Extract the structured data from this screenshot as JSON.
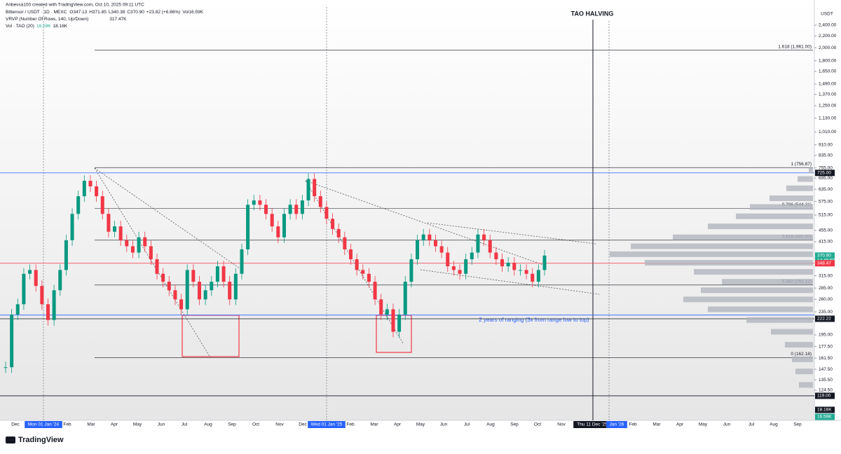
{
  "header": {
    "credit": "Anbessa100 created with TradingView.com, Oct 10, 2025 09:11 UTC",
    "symbol": "Bittensor / USDT · 1D · MEXC",
    "open": "O347.13",
    "high": "H371.85",
    "low": "L340.38",
    "close": "C370.90",
    "change": "+23.82 (+6.86%)",
    "volume": "Vol16.59K",
    "vrvp": "VRVP (Number Of Rows, 140, Up/Down)",
    "vrvp_value": "317.47K",
    "vol_indicator": "Vol · TAO (20)",
    "vol_a": "16.59K",
    "vol_b": "18.16K"
  },
  "currency": "USDT",
  "halving_label": "TAO HALVING",
  "annotation": "2 years of ranging (3x from range low to top)",
  "footer": "TradingView",
  "price_ticks": [
    {
      "value": 2400,
      "label": "2,400.00"
    },
    {
      "value": 2200,
      "label": "2,200.00"
    },
    {
      "value": 2000,
      "label": "2,000.00"
    },
    {
      "value": 1800,
      "label": "1,800.00"
    },
    {
      "value": 1650,
      "label": "1,650.00"
    },
    {
      "value": 1490,
      "label": "1,490.00"
    },
    {
      "value": 1370,
      "label": "1,370.00"
    },
    {
      "value": 1250,
      "label": "1,250.00"
    },
    {
      "value": 1130,
      "label": "1,130.00"
    },
    {
      "value": 1010,
      "label": "1,010.00"
    },
    {
      "value": 910,
      "label": "910.00"
    },
    {
      "value": 835,
      "label": "835.00"
    },
    {
      "value": 755,
      "label": "755.00"
    },
    {
      "value": 695,
      "label": "695.00"
    },
    {
      "value": 635,
      "label": "635.00"
    },
    {
      "value": 575,
      "label": "575.00"
    },
    {
      "value": 515,
      "label": "515.00"
    },
    {
      "value": 455,
      "label": "455.00"
    },
    {
      "value": 415,
      "label": "415.00"
    },
    {
      "value": 315,
      "label": "315.00"
    },
    {
      "value": 285,
      "label": "285.00"
    },
    {
      "value": 260,
      "label": "260.00"
    },
    {
      "value": 235,
      "label": "235.00"
    },
    {
      "value": 195,
      "label": "195.00"
    },
    {
      "value": 177.5,
      "label": "177.50"
    },
    {
      "value": 161.5,
      "label": "161.50"
    },
    {
      "value": 147.5,
      "label": "147.50"
    },
    {
      "value": 135.5,
      "label": "135.50"
    },
    {
      "value": 124.5,
      "label": "124.50"
    }
  ],
  "price_badges": [
    {
      "value": 725,
      "label": "725.00",
      "color": "#131722"
    },
    {
      "value": 370.9,
      "label": "370.90",
      "color": "#22ab94",
      "sub": "14:48:59"
    },
    {
      "value": 348.47,
      "label": "348.47",
      "color": "#f23645"
    },
    {
      "value": 222.22,
      "label": "222.22",
      "color": "#131722"
    },
    {
      "value": 119,
      "label": "119.00",
      "color": "#131722"
    }
  ],
  "volume_badges": [
    {
      "label": "18.16K",
      "color": "#131722"
    },
    {
      "label": "16.59K",
      "color": "#22ab94"
    }
  ],
  "fib_levels": [
    {
      "label": "1.618 (1,961.00)",
      "value": 1961
    },
    {
      "label": "1 (756.87)",
      "value": 756.87
    },
    {
      "label": "0.786 (544.31)",
      "value": 544.31
    },
    {
      "label": "0.618 (420.20)",
      "value": 420.2
    },
    {
      "label": "0.382 (292.12)",
      "value": 292.12
    },
    {
      "label": "0 (162.18)",
      "value": 162.18
    }
  ],
  "time_labels": [
    {
      "label": "Dec"
    },
    {
      "label": "Mon 01 Jan '24",
      "highlight": "#2962ff"
    },
    {
      "label": "Feb"
    },
    {
      "label": "Mar"
    },
    {
      "label": "Apr"
    },
    {
      "label": "May"
    },
    {
      "label": "Jun"
    },
    {
      "label": "Jul"
    },
    {
      "label": "Aug"
    },
    {
      "label": "Sep"
    },
    {
      "label": "Oct"
    },
    {
      "label": "Nov"
    },
    {
      "label": "Dec"
    },
    {
      "label": "Wed 01 Jan '25",
      "highlight": "#2962ff"
    },
    {
      "label": "Feb"
    },
    {
      "label": "Mar"
    },
    {
      "label": "Apr"
    },
    {
      "label": "May"
    },
    {
      "label": "Jun"
    },
    {
      "label": "Jul"
    },
    {
      "label": "Aug"
    },
    {
      "label": "Sep"
    },
    {
      "label": "Oct"
    },
    {
      "label": "Nov"
    },
    {
      "label": "Thu 11 Dec '25",
      "highlight": "#131722"
    },
    {
      "label": "Jan '26",
      "highlight": "#2962ff"
    },
    {
      "label": "Feb"
    },
    {
      "label": "Mar"
    },
    {
      "label": "Apr"
    },
    {
      "label": "May"
    },
    {
      "label": "Jun"
    },
    {
      "label": "Jul"
    },
    {
      "label": "Aug"
    },
    {
      "label": "Sep"
    }
  ],
  "closes": [
    150,
    230,
    250,
    320,
    330,
    290,
    250,
    220,
    280,
    330,
    420,
    520,
    600,
    680,
    650,
    600,
    520,
    450,
    470,
    420,
    400,
    380,
    430,
    400,
    360,
    320,
    300,
    280,
    260,
    240,
    330,
    300,
    260,
    280,
    300,
    340,
    300,
    260,
    320,
    390,
    560,
    580,
    560,
    520,
    470,
    430,
    520,
    560,
    520,
    580,
    690,
    600,
    550,
    500,
    460,
    430,
    390,
    360,
    330,
    320,
    300,
    260,
    230,
    240,
    200,
    230,
    300,
    360,
    420,
    440,
    420,
    400,
    380,
    340,
    330,
    320,
    360,
    380,
    440,
    420,
    380,
    360,
    340,
    350,
    330,
    330,
    320,
    300,
    330,
    370.9
  ],
  "volume_profile": [
    {
      "price": 740,
      "volume": 6
    },
    {
      "price": 690,
      "volume": 22
    },
    {
      "price": 640,
      "volume": 38
    },
    {
      "price": 590,
      "volume": 62
    },
    {
      "price": 550,
      "volume": 90
    },
    {
      "price": 510,
      "volume": 110
    },
    {
      "price": 470,
      "volume": 150
    },
    {
      "price": 430,
      "volume": 200
    },
    {
      "price": 400,
      "volume": 260
    },
    {
      "price": 375,
      "volume": 290
    },
    {
      "price": 350,
      "volume": 240
    },
    {
      "price": 325,
      "volume": 170
    },
    {
      "price": 300,
      "volume": 130
    },
    {
      "price": 280,
      "volume": 160
    },
    {
      "price": 260,
      "volume": 185
    },
    {
      "price": 240,
      "volume": 150
    },
    {
      "price": 220,
      "volume": 95
    },
    {
      "price": 200,
      "volume": 60
    },
    {
      "price": 180,
      "volume": 40
    },
    {
      "price": 160,
      "volume": 30
    },
    {
      "price": 145,
      "volume": 25
    },
    {
      "price": 130,
      "volume": 20
    }
  ],
  "levels": [
    {
      "value": 725,
      "color": "#2962ff"
    },
    {
      "value": 229,
      "color": "#2962ff"
    },
    {
      "value": 348.47,
      "color": "#f23645"
    },
    {
      "value": 222.22,
      "color": "#131722"
    },
    {
      "value": 119,
      "color": "#131722"
    }
  ]
}
